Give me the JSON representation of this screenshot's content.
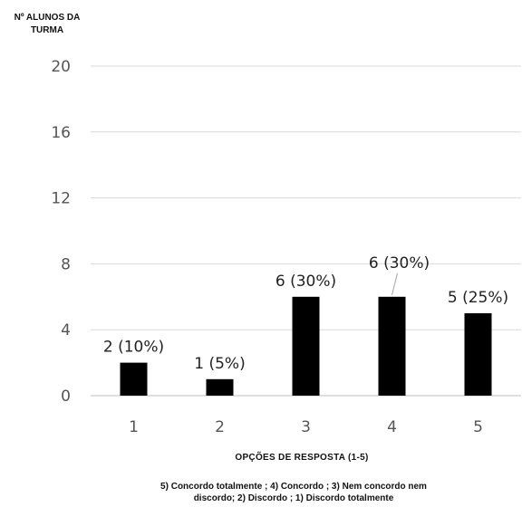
{
  "chart_data": {
    "type": "bar",
    "ylabel_lines": [
      "Nº ALUNOS DA",
      "TURMA"
    ],
    "xlabel": "OPÇÕES DE RESPOSTA (1-5)",
    "caption_lines": [
      "5) Concordo totalmente ;  4) Concordo ;  3) Nem concordo nem",
      "discordo;  2) Discordo  ; 1) Discordo totalmente"
    ],
    "categories": [
      "1",
      "2",
      "3",
      "4",
      "5"
    ],
    "values": [
      2,
      1,
      6,
      6,
      5
    ],
    "data_labels": [
      "2 (10%)",
      "1 (5%)",
      "6 (30%)",
      "6 (30%)",
      "5 (25%)"
    ],
    "ylim": [
      0,
      20
    ],
    "yticks": [
      "0",
      "4",
      "8",
      "12",
      "16",
      "20"
    ],
    "grid": true,
    "colors": {
      "bar": "#000000",
      "grid": "#d9d9d9",
      "axis": "#bfbfbf"
    }
  }
}
